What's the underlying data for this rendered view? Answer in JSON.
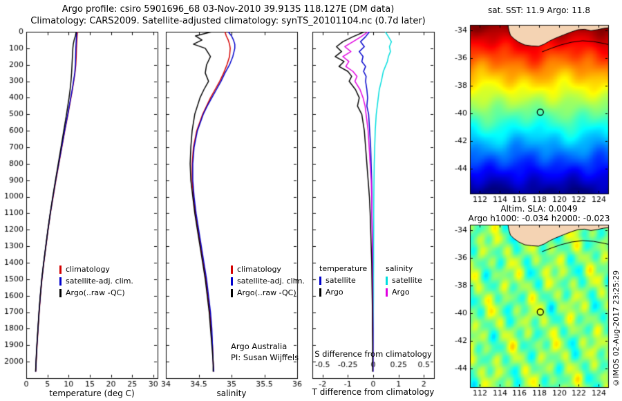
{
  "header": {
    "line1": "Argo profile: csiro 5901696_68 03-Nov-2010 39.913S 118.127E (DM data)",
    "line2": "Climatology: CARS2009. Satellite-adjusted climatology: synTS_20101104.nc (0.7d later)"
  },
  "panels": {
    "temperature": {
      "legend": [
        {
          "label": "climatology",
          "color": "#d40000"
        },
        {
          "label": "satellite-adj. clim.",
          "color": "#0000cc"
        },
        {
          "label": "Argo(..raw -QC)",
          "color": "#000000"
        }
      ]
    },
    "salinity": {
      "legend": [
        {
          "label": "climatology",
          "color": "#d40000"
        },
        {
          "label": "satellite-adj. clim.",
          "color": "#0000cc"
        },
        {
          "label": "Argo(..raw -QC)",
          "color": "#000000"
        }
      ],
      "annotation1": "Argo Australia",
      "annotation2": "PI: Susan Wijffels"
    },
    "difference": {
      "headers": [
        "temperature",
        "salinity"
      ],
      "temperature_items": [
        {
          "label": "satellite",
          "color": "#0000cc"
        },
        {
          "label": "Argo",
          "color": "#000000"
        }
      ],
      "salinity_items": [
        {
          "label": "satellite",
          "color": "#00dede"
        },
        {
          "label": "Argo",
          "color": "#e000e0"
        }
      ]
    }
  },
  "watermark": "©IMOS 02-Aug-2017 23:25:29",
  "chart_data": [
    {
      "id": "temperature_profile",
      "type": "line",
      "xlabel": "temperature (deg C)",
      "xlim": [
        0,
        31
      ],
      "xticks": [
        0,
        5,
        10,
        15,
        20,
        25,
        30
      ],
      "depth_max": 2100,
      "depth_ticks": [
        0,
        100,
        200,
        300,
        400,
        500,
        600,
        700,
        800,
        900,
        1000,
        1100,
        1200,
        1300,
        1400,
        1500,
        1600,
        1700,
        1800,
        1900,
        2000
      ],
      "show_depth_labels": true,
      "depths": [
        0,
        25,
        50,
        75,
        100,
        150,
        200,
        250,
        300,
        350,
        400,
        450,
        500,
        600,
        700,
        800,
        900,
        1000,
        1100,
        1200,
        1300,
        1400,
        1500,
        1600,
        1700,
        1800,
        1900,
        2000,
        2060
      ],
      "series": [
        {
          "name": "climatology",
          "color": "#d40000",
          "values": [
            12.1,
            12.0,
            11.95,
            11.9,
            11.85,
            11.8,
            11.7,
            11.5,
            11.2,
            10.9,
            10.55,
            10.2,
            9.85,
            9.1,
            8.4,
            7.7,
            7.0,
            6.35,
            5.7,
            5.15,
            4.65,
            4.15,
            3.7,
            3.35,
            3.05,
            2.8,
            2.55,
            2.35,
            2.25
          ]
        },
        {
          "name": "satellite-adj. clim.",
          "color": "#0000cc",
          "values": [
            11.9,
            11.85,
            11.8,
            11.75,
            11.7,
            11.65,
            11.6,
            11.45,
            11.15,
            10.85,
            10.5,
            10.15,
            9.8,
            9.05,
            8.35,
            7.65,
            6.95,
            6.3,
            5.68,
            5.12,
            4.62,
            4.12,
            3.67,
            3.32,
            3.02,
            2.77,
            2.52,
            2.32,
            2.22
          ]
        },
        {
          "name": "Argo(..raw -QC)",
          "color": "#000000",
          "values": [
            11.8,
            11.6,
            11.3,
            11.1,
            11.0,
            10.9,
            10.8,
            10.7,
            10.55,
            10.35,
            10.1,
            9.8,
            9.5,
            8.85,
            8.2,
            7.55,
            6.9,
            6.25,
            5.65,
            5.1,
            4.6,
            4.1,
            3.65,
            3.3,
            3.0,
            2.75,
            2.5,
            2.3,
            2.2
          ]
        }
      ]
    },
    {
      "id": "salinity_profile",
      "type": "line",
      "xlabel": "salinity",
      "xlim": [
        34,
        36
      ],
      "xticks": [
        34,
        34.5,
        35,
        35.5,
        36
      ],
      "depth_max": 2100,
      "show_depth_labels": false,
      "depths": [
        0,
        25,
        50,
        75,
        100,
        150,
        200,
        250,
        300,
        350,
        400,
        450,
        500,
        600,
        700,
        800,
        900,
        1000,
        1100,
        1200,
        1300,
        1400,
        1500,
        1600,
        1700,
        1800,
        1900,
        2000,
        2060
      ],
      "series": [
        {
          "name": "climatology",
          "color": "#d40000",
          "values": [
            34.9,
            34.92,
            34.95,
            34.97,
            34.98,
            34.97,
            34.93,
            34.88,
            34.82,
            34.75,
            34.68,
            34.62,
            34.56,
            34.47,
            34.42,
            34.4,
            34.4,
            34.42,
            34.45,
            34.49,
            34.53,
            34.57,
            34.61,
            34.64,
            34.67,
            34.69,
            34.71,
            34.72,
            34.73
          ]
        },
        {
          "name": "satellite-adj. clim.",
          "color": "#0000cc",
          "values": [
            34.95,
            35.0,
            35.03,
            35.05,
            35.05,
            35.02,
            34.97,
            34.9,
            34.84,
            34.77,
            34.7,
            34.63,
            34.57,
            34.48,
            34.43,
            34.41,
            34.41,
            34.43,
            34.46,
            34.5,
            34.54,
            34.58,
            34.62,
            34.65,
            34.68,
            34.7,
            34.71,
            34.72,
            34.73
          ]
        },
        {
          "name": "Argo(..raw -QC)",
          "color": "#000000",
          "values": [
            34.7,
            34.45,
            34.55,
            34.42,
            34.6,
            34.68,
            34.62,
            34.6,
            34.65,
            34.58,
            34.52,
            34.48,
            34.44,
            34.4,
            34.38,
            34.37,
            34.38,
            34.41,
            34.44,
            34.48,
            34.52,
            34.56,
            34.6,
            34.63,
            34.66,
            34.68,
            34.7,
            34.72,
            34.72
          ]
        }
      ]
    },
    {
      "id": "difference_profile",
      "type": "line",
      "xlabel": "T difference from climatology",
      "secondary_xlabel": "S difference from climatology",
      "xlim": [
        -2.4,
        2.4
      ],
      "xticks": [
        -2,
        -1,
        0,
        1,
        2
      ],
      "secondary_xticks": [
        -0.5,
        -0.25,
        0,
        0.25,
        0.5
      ],
      "s_to_t_scale": 4,
      "depth_max": 2100,
      "show_depth_labels": false,
      "depths": [
        0,
        30,
        60,
        90,
        120,
        150,
        180,
        210,
        240,
        270,
        300,
        350,
        400,
        450,
        500,
        600,
        700,
        800,
        900,
        1000,
        1100,
        1200,
        1300,
        1400,
        1500,
        1600,
        1700,
        1800,
        1900,
        2000,
        2060
      ],
      "series": [
        {
          "name": "satellite",
          "variable": "salinity",
          "color": "#00dede",
          "scale": 4,
          "values": [
            0.12,
            0.15,
            0.18,
            0.16,
            0.17,
            0.15,
            0.14,
            0.12,
            0.1,
            0.09,
            0.08,
            0.06,
            0.05,
            0.04,
            0.03,
            0.02,
            0.015,
            0.01,
            0.008,
            0.006,
            0.005,
            0.005,
            0.004,
            0.004,
            0.003,
            0.003,
            0.002,
            0.002,
            0.002,
            0.001,
            0.001
          ]
        },
        {
          "name": "satellite",
          "variable": "temperature",
          "color": "#0000cc",
          "scale": 1,
          "values": [
            -0.15,
            -0.3,
            -0.5,
            -0.35,
            -0.55,
            -0.4,
            -0.45,
            -0.3,
            -0.38,
            -0.28,
            -0.3,
            -0.25,
            -0.22,
            -0.25,
            -0.18,
            -0.14,
            -0.1,
            -0.08,
            -0.06,
            -0.05,
            -0.05,
            -0.04,
            -0.03,
            -0.03,
            -0.02,
            -0.02,
            -0.02,
            -0.01,
            -0.01,
            -0.01,
            -0.01
          ]
        },
        {
          "name": "Argo",
          "variable": "salinity",
          "color": "#e000e0",
          "scale": 4,
          "values": [
            -0.05,
            -0.12,
            -0.2,
            -0.28,
            -0.22,
            -0.3,
            -0.24,
            -0.27,
            -0.2,
            -0.16,
            -0.18,
            -0.13,
            -0.1,
            -0.08,
            -0.07,
            -0.05,
            -0.04,
            -0.03,
            -0.02,
            -0.015,
            -0.012,
            -0.01,
            -0.008,
            -0.006,
            -0.005,
            -0.004,
            -0.003,
            -0.003,
            -0.002,
            -0.002,
            -0.002
          ]
        },
        {
          "name": "Argo",
          "variable": "temperature",
          "color": "#000000",
          "scale": 1,
          "values": [
            -0.35,
            -0.8,
            -1.2,
            -1.45,
            -1.25,
            -1.5,
            -1.15,
            -1.35,
            -1.0,
            -0.85,
            -0.95,
            -0.7,
            -0.55,
            -0.62,
            -0.45,
            -0.35,
            -0.3,
            -0.25,
            -0.2,
            -0.15,
            -0.12,
            -0.1,
            -0.08,
            -0.06,
            -0.05,
            -0.04,
            -0.03,
            -0.03,
            -0.02,
            -0.02,
            -0.02
          ]
        }
      ]
    },
    {
      "id": "sst_map",
      "type": "heatmap",
      "title": "sat. SST: 11.9 Argo: 11.8",
      "sst_sat": 11.9,
      "sst_argo": 11.8,
      "xlim": [
        111,
        125
      ],
      "ylim": [
        -45.8,
        -33.6
      ],
      "xticks": [
        112,
        114,
        116,
        118,
        120,
        122,
        124
      ],
      "yticks": [
        -34,
        -36,
        -38,
        -40,
        -42,
        -44
      ],
      "marker": {
        "lon": 118.127,
        "lat": -39.913
      },
      "colormap": "jet",
      "land_color": "#f4d3b3",
      "coastline": [
        [
          114.85,
          -33.6
        ],
        [
          114.95,
          -34.0
        ],
        [
          115.1,
          -34.35
        ],
        [
          115.45,
          -34.6
        ],
        [
          115.95,
          -34.85
        ],
        [
          116.55,
          -35.05
        ],
        [
          117.25,
          -35.12
        ],
        [
          117.95,
          -35.15
        ],
        [
          118.5,
          -35.0
        ],
        [
          119.1,
          -34.75
        ],
        [
          119.7,
          -34.55
        ],
        [
          120.5,
          -34.32
        ],
        [
          121.3,
          -34.1
        ],
        [
          121.95,
          -33.95
        ],
        [
          122.6,
          -33.92
        ],
        [
          123.25,
          -34.02
        ],
        [
          123.9,
          -33.95
        ],
        [
          124.55,
          -33.85
        ],
        [
          125.2,
          -33.8
        ]
      ],
      "shelf_line": [
        [
          118.3,
          -35.55
        ],
        [
          119.2,
          -35.3
        ],
        [
          120.2,
          -35.05
        ],
        [
          121.3,
          -34.85
        ],
        [
          122.4,
          -34.75
        ],
        [
          123.5,
          -34.8
        ],
        [
          124.6,
          -34.95
        ],
        [
          125.2,
          -35.05
        ]
      ]
    },
    {
      "id": "sla_map",
      "type": "heatmap",
      "title1": "Altim. SLA: 0.0049",
      "title2": "Argo h1000: -0.034 h2000: -0.023",
      "altim_sla": 0.0049,
      "argo_h1000": -0.034,
      "argo_h2000": -0.023,
      "xlim": [
        111,
        125
      ],
      "ylim": [
        -45.35,
        -33.6
      ],
      "xticks": [
        112,
        114,
        116,
        118,
        120,
        122,
        124
      ],
      "yticks": [
        -34,
        -36,
        -38,
        -40,
        -42,
        -44
      ],
      "marker": {
        "lon": 118.127,
        "lat": -39.913
      },
      "colormap": "jet",
      "land_color": "#f4d3b3"
    }
  ]
}
